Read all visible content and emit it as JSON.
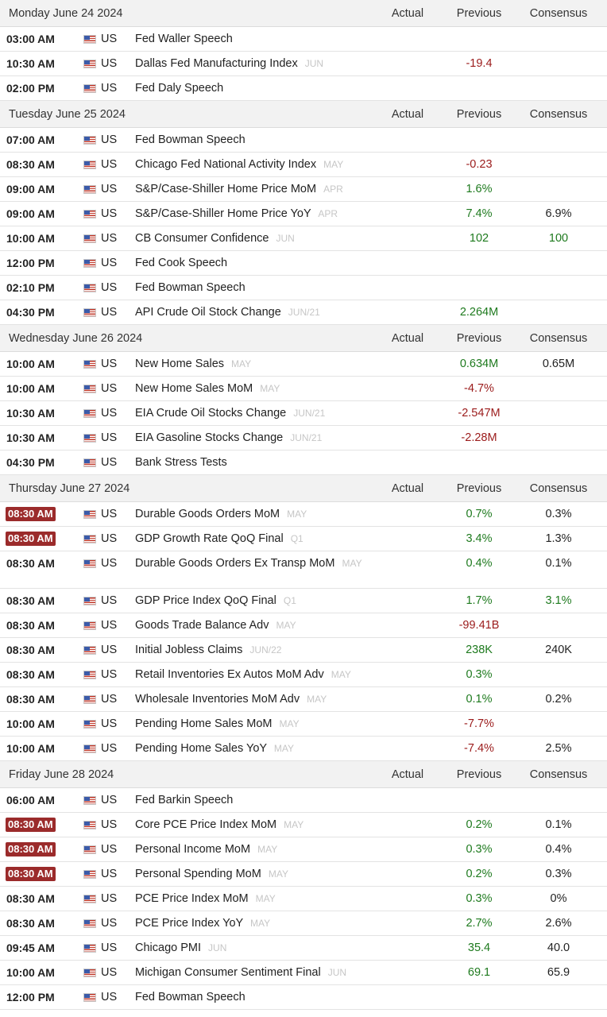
{
  "columns": {
    "actual": "Actual",
    "previous": "Previous",
    "consensus": "Consensus"
  },
  "colors": {
    "positive": "#1e7a1e",
    "negative": "#9b1b1b",
    "highlight_time": "#9b2b2b"
  },
  "flag_icon": "us-flag-icon",
  "days": [
    {
      "date": "Monday June 24 2024",
      "events": [
        {
          "time": "03:00 AM",
          "country": "US",
          "event": "Fed Waller Speech",
          "period": "",
          "actual": "",
          "previous": "",
          "consensus": ""
        },
        {
          "time": "10:30 AM",
          "country": "US",
          "event": "Dallas Fed Manufacturing Index",
          "period": "JUN",
          "actual": "",
          "previous": "-19.4",
          "previous_tone": "neg",
          "consensus": ""
        },
        {
          "time": "02:00 PM",
          "country": "US",
          "event": "Fed Daly Speech",
          "period": "",
          "actual": "",
          "previous": "",
          "consensus": ""
        }
      ]
    },
    {
      "date": "Tuesday June 25 2024",
      "events": [
        {
          "time": "07:00 AM",
          "country": "US",
          "event": "Fed Bowman Speech",
          "period": "",
          "actual": "",
          "previous": "",
          "consensus": ""
        },
        {
          "time": "08:30 AM",
          "country": "US",
          "event": "Chicago Fed National Activity Index",
          "period": "MAY",
          "actual": "",
          "previous": "-0.23",
          "previous_tone": "neg",
          "consensus": ""
        },
        {
          "time": "09:00 AM",
          "country": "US",
          "event": "S&P/Case-Shiller Home Price MoM",
          "period": "APR",
          "actual": "",
          "previous": "1.6%",
          "previous_tone": "pos",
          "consensus": ""
        },
        {
          "time": "09:00 AM",
          "country": "US",
          "event": "S&P/Case-Shiller Home Price YoY",
          "period": "APR",
          "actual": "",
          "previous": "7.4%",
          "previous_tone": "pos",
          "consensus": "6.9%",
          "consensus_tone": "neu"
        },
        {
          "time": "10:00 AM",
          "country": "US",
          "event": "CB Consumer Confidence",
          "period": "JUN",
          "actual": "",
          "previous": "102",
          "previous_tone": "pos",
          "consensus": "100",
          "consensus_tone": "pos"
        },
        {
          "time": "12:00 PM",
          "country": "US",
          "event": "Fed Cook Speech",
          "period": "",
          "actual": "",
          "previous": "",
          "consensus": ""
        },
        {
          "time": "02:10 PM",
          "country": "US",
          "event": "Fed Bowman Speech",
          "period": "",
          "actual": "",
          "previous": "",
          "consensus": ""
        },
        {
          "time": "04:30 PM",
          "country": "US",
          "event": "API Crude Oil Stock Change",
          "period": "JUN/21",
          "actual": "",
          "previous": "2.264M",
          "previous_tone": "pos",
          "consensus": ""
        }
      ]
    },
    {
      "date": "Wednesday June 26 2024",
      "events": [
        {
          "time": "10:00 AM",
          "country": "US",
          "event": "New Home Sales",
          "period": "MAY",
          "actual": "",
          "previous": "0.634M",
          "previous_tone": "pos",
          "consensus": "0.65M",
          "consensus_tone": "neu"
        },
        {
          "time": "10:00 AM",
          "country": "US",
          "event": "New Home Sales MoM",
          "period": "MAY",
          "actual": "",
          "previous": "-4.7%",
          "previous_tone": "neg",
          "consensus": ""
        },
        {
          "time": "10:30 AM",
          "country": "US",
          "event": "EIA Crude Oil Stocks Change",
          "period": "JUN/21",
          "actual": "",
          "previous": "-2.547M",
          "previous_tone": "neg",
          "consensus": ""
        },
        {
          "time": "10:30 AM",
          "country": "US",
          "event": "EIA Gasoline Stocks Change",
          "period": "JUN/21",
          "actual": "",
          "previous": "-2.28M",
          "previous_tone": "neg",
          "consensus": ""
        },
        {
          "time": "04:30 PM",
          "country": "US",
          "event": "Bank Stress Tests",
          "period": "",
          "actual": "",
          "previous": "",
          "consensus": ""
        }
      ]
    },
    {
      "date": "Thursday June 27 2024",
      "events": [
        {
          "time": "08:30 AM",
          "highlight": true,
          "country": "US",
          "event": "Durable Goods Orders MoM",
          "period": "MAY",
          "actual": "",
          "previous": "0.7%",
          "previous_tone": "pos",
          "consensus": "0.3%",
          "consensus_tone": "neu"
        },
        {
          "time": "08:30 AM",
          "highlight": true,
          "country": "US",
          "event": "GDP Growth Rate QoQ Final",
          "period": "Q1",
          "actual": "",
          "previous": "3.4%",
          "previous_tone": "pos",
          "consensus": "1.3%",
          "consensus_tone": "neu"
        },
        {
          "time": "08:30 AM",
          "tall": true,
          "country": "US",
          "event": "Durable Goods Orders Ex Transp MoM",
          "period": "MAY",
          "actual": "",
          "previous": "0.4%",
          "previous_tone": "pos",
          "consensus": "0.1%",
          "consensus_tone": "neu"
        },
        {
          "time": "08:30 AM",
          "country": "US",
          "event": "GDP Price Index QoQ Final",
          "period": "Q1",
          "actual": "",
          "previous": "1.7%",
          "previous_tone": "pos",
          "consensus": "3.1%",
          "consensus_tone": "pos"
        },
        {
          "time": "08:30 AM",
          "country": "US",
          "event": "Goods Trade Balance Adv",
          "period": "MAY",
          "actual": "",
          "previous": "-99.41B",
          "previous_tone": "neg",
          "consensus": ""
        },
        {
          "time": "08:30 AM",
          "country": "US",
          "event": "Initial Jobless Claims",
          "period": "JUN/22",
          "actual": "",
          "previous": "238K",
          "previous_tone": "pos",
          "consensus": "240K",
          "consensus_tone": "neu"
        },
        {
          "time": "08:30 AM",
          "country": "US",
          "event": "Retail Inventories Ex Autos MoM Adv",
          "period": "MAY",
          "actual": "",
          "previous": "0.3%",
          "previous_tone": "pos",
          "consensus": ""
        },
        {
          "time": "08:30 AM",
          "country": "US",
          "event": "Wholesale Inventories MoM Adv",
          "period": "MAY",
          "actual": "",
          "previous": "0.1%",
          "previous_tone": "pos",
          "consensus": "0.2%",
          "consensus_tone": "neu"
        },
        {
          "time": "10:00 AM",
          "country": "US",
          "event": "Pending Home Sales MoM",
          "period": "MAY",
          "actual": "",
          "previous": "-7.7%",
          "previous_tone": "neg",
          "consensus": ""
        },
        {
          "time": "10:00 AM",
          "country": "US",
          "event": "Pending Home Sales YoY",
          "period": "MAY",
          "actual": "",
          "previous": "-7.4%",
          "previous_tone": "neg",
          "consensus": "2.5%",
          "consensus_tone": "neu"
        }
      ]
    },
    {
      "date": "Friday June 28 2024",
      "events": [
        {
          "time": "06:00 AM",
          "country": "US",
          "event": "Fed Barkin Speech",
          "period": "",
          "actual": "",
          "previous": "",
          "consensus": ""
        },
        {
          "time": "08:30 AM",
          "highlight": true,
          "country": "US",
          "event": "Core PCE Price Index MoM",
          "period": "MAY",
          "actual": "",
          "previous": "0.2%",
          "previous_tone": "pos",
          "consensus": "0.1%",
          "consensus_tone": "neu"
        },
        {
          "time": "08:30 AM",
          "highlight": true,
          "country": "US",
          "event": "Personal Income MoM",
          "period": "MAY",
          "actual": "",
          "previous": "0.3%",
          "previous_tone": "pos",
          "consensus": "0.4%",
          "consensus_tone": "neu"
        },
        {
          "time": "08:30 AM",
          "highlight": true,
          "country": "US",
          "event": "Personal Spending MoM",
          "period": "MAY",
          "actual": "",
          "previous": "0.2%",
          "previous_tone": "pos",
          "consensus": "0.3%",
          "consensus_tone": "neu"
        },
        {
          "time": "08:30 AM",
          "country": "US",
          "event": "PCE Price Index MoM",
          "period": "MAY",
          "actual": "",
          "previous": "0.3%",
          "previous_tone": "pos",
          "consensus": "0%",
          "consensus_tone": "neu"
        },
        {
          "time": "08:30 AM",
          "country": "US",
          "event": "PCE Price Index YoY",
          "period": "MAY",
          "actual": "",
          "previous": "2.7%",
          "previous_tone": "pos",
          "consensus": "2.6%",
          "consensus_tone": "neu"
        },
        {
          "time": "09:45 AM",
          "country": "US",
          "event": "Chicago PMI",
          "period": "JUN",
          "actual": "",
          "previous": "35.4",
          "previous_tone": "pos",
          "consensus": "40.0",
          "consensus_tone": "neu"
        },
        {
          "time": "10:00 AM",
          "country": "US",
          "event": "Michigan Consumer Sentiment Final",
          "period": "JUN",
          "actual": "",
          "previous": "69.1",
          "previous_tone": "pos",
          "consensus": "65.9",
          "consensus_tone": "neu"
        },
        {
          "time": "12:00 PM",
          "country": "US",
          "event": "Fed Bowman Speech",
          "period": "",
          "actual": "",
          "previous": "",
          "consensus": ""
        }
      ]
    }
  ]
}
